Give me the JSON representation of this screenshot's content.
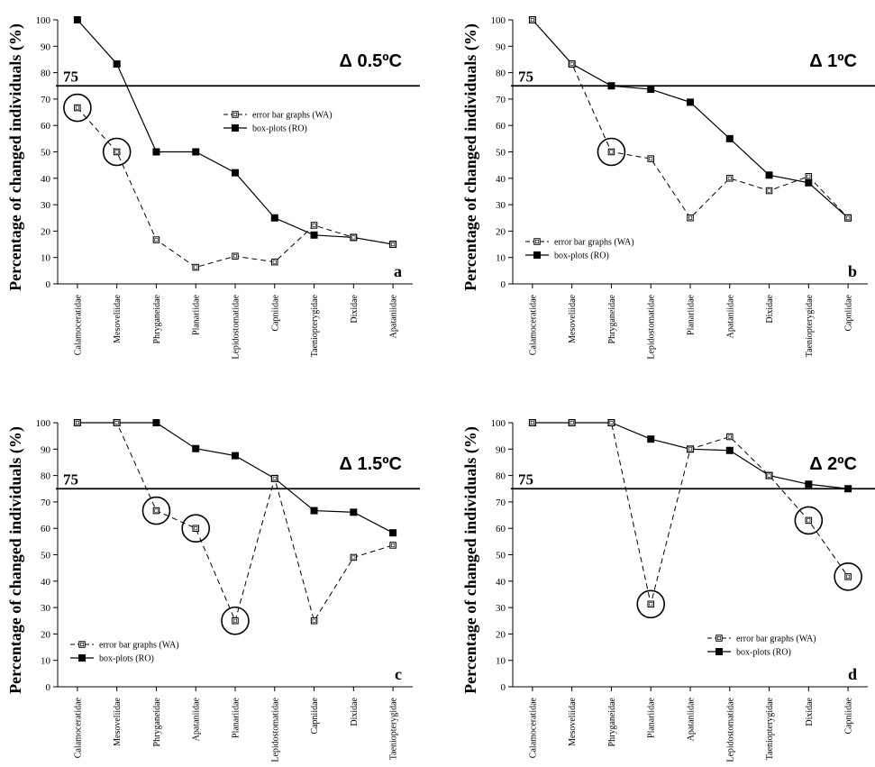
{
  "chart_data": [
    {
      "type": "line",
      "panel": "a",
      "title": "Δ 0.5ºC",
      "ylabel": "Percentage of changed individuals (%)",
      "xlabel": "",
      "ylim": [
        0,
        100
      ],
      "yticks": [
        "0",
        "10",
        "20",
        "30",
        "40",
        "50",
        "60",
        "70",
        "80",
        "90",
        "100"
      ],
      "reference_line": {
        "value": 75,
        "label": "75"
      },
      "legend_position": "upper-right",
      "categories": [
        "Calamoceratidae",
        "Mesoveliidae",
        "Phryganeidae",
        "Planariidae",
        "Lepidostomatidae",
        "Capniidae",
        "Taeniopterygidae",
        "Dixidae",
        "Apataniidae"
      ],
      "series": [
        {
          "name": "error bar graphs (WA)",
          "style": "dashed-open-square",
          "values": [
            66.7,
            50,
            16.7,
            6.3,
            10.5,
            8.3,
            22.2,
            17.6,
            15
          ],
          "circled": [
            0,
            1
          ]
        },
        {
          "name": "box-plots (RO)",
          "style": "solid-filled-square",
          "values": [
            100,
            83.3,
            50,
            50,
            42.1,
            25,
            18.5,
            17.6,
            15
          ]
        }
      ]
    },
    {
      "type": "line",
      "panel": "b",
      "title": "Δ 1ºC",
      "ylabel": "Percentage of changed individuals (%)",
      "xlabel": "",
      "ylim": [
        0,
        100
      ],
      "yticks": [
        "0",
        "10",
        "20",
        "30",
        "40",
        "50",
        "60",
        "70",
        "80",
        "90",
        "100"
      ],
      "reference_line": {
        "value": 75,
        "label": "75"
      },
      "legend_position": "lower-left",
      "categories": [
        "Calamoceratidae",
        "Mesoveliidae",
        "Phryganeidae",
        "Lepidostomatidae",
        "Planariidae",
        "Apataniidae",
        "Dixidae",
        "Taeniopterygidae",
        "Capniidae"
      ],
      "series": [
        {
          "name": "error bar graphs (WA)",
          "style": "dashed-open-square",
          "values": [
            100,
            83.3,
            50,
            47.4,
            25,
            40,
            35.3,
            40.7,
            25
          ],
          "circled": [
            2
          ]
        },
        {
          "name": "box-plots (RO)",
          "style": "solid-filled-square",
          "values": [
            100,
            83.3,
            75,
            73.7,
            68.8,
            55,
            41.2,
            38.3,
            25
          ]
        }
      ]
    },
    {
      "type": "line",
      "panel": "c",
      "title": "Δ 1.5ºC",
      "ylabel": "Percentage of changed individuals (%)",
      "xlabel": "",
      "ylim": [
        0,
        100
      ],
      "yticks": [
        "0",
        "10",
        "20",
        "30",
        "40",
        "50",
        "60",
        "70",
        "80",
        "90",
        "100"
      ],
      "reference_line": {
        "value": 75,
        "label": "75"
      },
      "legend_position": "lower-left",
      "categories": [
        "Calamoceratidae",
        "Mesoveliidae",
        "Phryganeidae",
        "Apataniidae",
        "Planariidae",
        "Lepidostomatidae",
        "Capniidae",
        "Dixidae",
        "Taeniopterygidae"
      ],
      "series": [
        {
          "name": "error bar graphs (WA)",
          "style": "dashed-open-square",
          "values": [
            100,
            100,
            66.7,
            60,
            25,
            78.9,
            25,
            49,
            53.6
          ],
          "circled": [
            2,
            3,
            4
          ]
        },
        {
          "name": "box-plots (RO)",
          "style": "solid-filled-square",
          "values": [
            100,
            100,
            100,
            90.2,
            87.5,
            78.9,
            66.7,
            66.1,
            58.3
          ]
        }
      ]
    },
    {
      "type": "line",
      "panel": "d",
      "title": "Δ 2ºC",
      "ylabel": "Percentage of changed individuals (%)",
      "xlabel": "",
      "ylim": [
        0,
        100
      ],
      "yticks": [
        "0",
        "10",
        "20",
        "30",
        "40",
        "50",
        "60",
        "70",
        "80",
        "90",
        "100"
      ],
      "reference_line": {
        "value": 75,
        "label": "75"
      },
      "legend_position": "lower-right",
      "categories": [
        "Calamoceratidae",
        "Mesoveliidae",
        "Phryganeidae",
        "Planariidae",
        "Apataniidae",
        "Lepidostomatidae",
        "Taeniopterygidae",
        "Dixidae",
        "Capniidae"
      ],
      "series": [
        {
          "name": "error bar graphs (WA)",
          "style": "dashed-open-square",
          "values": [
            100,
            100,
            100,
            31.3,
            90,
            94.7,
            80,
            63,
            41.7
          ],
          "circled": [
            3,
            7,
            8
          ]
        },
        {
          "name": "box-plots (RO)",
          "style": "solid-filled-square",
          "values": [
            100,
            100,
            100,
            93.8,
            90,
            89.5,
            80,
            76.7,
            75
          ]
        }
      ]
    }
  ]
}
